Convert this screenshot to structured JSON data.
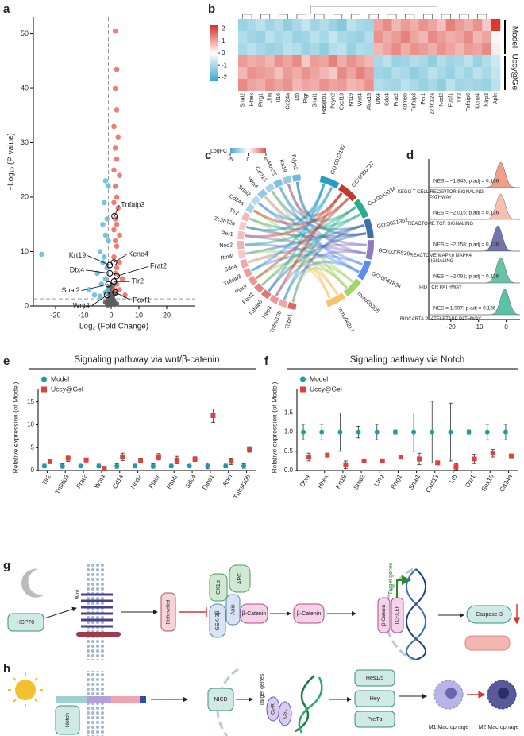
{
  "panel_labels": [
    "a",
    "b",
    "c",
    "d",
    "e",
    "f",
    "g",
    "h"
  ],
  "chart_data": [
    {
      "type": "volcano",
      "xlabel": "Log₂ (Fold Change)",
      "ylabel": "−Log₁₀ (P value)",
      "xlim": [
        -28,
        30
      ],
      "ylim": [
        0,
        53
      ],
      "xticks": [
        -20,
        -10,
        0,
        10,
        20
      ],
      "yticks": [
        0,
        10,
        20,
        30,
        40,
        50
      ],
      "vlines": [
        -1,
        1
      ],
      "hline": 1.3,
      "series": [
        {
          "color": "#5a5a5a",
          "x": [
            -1.5,
            -1,
            -0.5,
            0,
            0.5,
            1,
            1.5,
            -0.8,
            0.3,
            0.8,
            -0.3,
            2,
            -2,
            0.1,
            -0.6,
            0.6,
            0,
            -1.2,
            1.2,
            0.4
          ],
          "values": [
            0.5,
            1.2,
            2,
            0.3,
            1.6,
            0.8,
            2.4,
            2.8,
            3,
            1.1,
            0.6,
            0.4,
            0.7,
            2.2,
            3.4,
            3.8,
            1.4,
            0.2,
            0.3,
            0.9
          ]
        },
        {
          "color": "#e8685a",
          "x": [
            1.5,
            2,
            1.5,
            2,
            1,
            2.5,
            1.5,
            2,
            1,
            3,
            1.5,
            2,
            1,
            2.5,
            1.5,
            2,
            1,
            3,
            1.5,
            2,
            1,
            3,
            2,
            1.5,
            4,
            2,
            3,
            5,
            1.2
          ],
          "values": [
            50.5,
            43.5,
            40,
            36,
            33,
            31,
            29,
            27,
            25,
            24,
            22,
            20,
            19,
            18,
            16,
            15,
            14,
            13,
            12,
            11,
            9,
            8,
            7,
            6,
            5,
            4,
            3,
            2,
            3
          ]
        },
        {
          "color": "#62b8dd",
          "x": [
            -2,
            -1,
            -2.5,
            -1.5,
            -3,
            -2,
            -1,
            -4,
            -2.5,
            -25,
            -3,
            -1.5,
            -5,
            -2,
            -3.5,
            -8,
            -1.2,
            -2,
            -6,
            -4
          ],
          "values": [
            23,
            22,
            19,
            16,
            15,
            13,
            12,
            10,
            9,
            9.5,
            8,
            7,
            6,
            5,
            4,
            3,
            3,
            2.5,
            2,
            1.8
          ]
        }
      ],
      "annotations": [
        {
          "text": "Tnfaip3",
          "x": 1.2,
          "y": 16.5
        },
        {
          "text": "Krt19",
          "x": -0.5,
          "y": 7.5
        },
        {
          "text": "Kcne4",
          "x": 1,
          "y": 8
        },
        {
          "text": "Frat2",
          "x": 2,
          "y": 5.5
        },
        {
          "text": "Dtx4",
          "x": -0.5,
          "y": 6
        },
        {
          "text": "Tlr2",
          "x": 1,
          "y": 4.5
        },
        {
          "text": "Snai2",
          "x": -1,
          "y": 4
        },
        {
          "text": "Wnt4",
          "x": -1.5,
          "y": 2
        },
        {
          "text": "Foxf1",
          "x": 1.5,
          "y": 2.5
        }
      ]
    },
    {
      "type": "heatmap",
      "columns": [
        "Snai2",
        "Hhex",
        "Prrg1",
        "Lfng",
        "Il16",
        "Cd24a",
        "Ltb",
        "Pigr",
        "Snai1",
        "Rasgrp1",
        "Pdyn2",
        "Cxcl13",
        "Krt19",
        "Wnt4",
        "Alox15",
        "Dtx4",
        "Sdc4",
        "Frat2",
        "Kdm6b",
        "Tnfaip3",
        "Per1",
        "Zc3h12a",
        "Nod2",
        "Foxf1",
        "Tlr2",
        "Tnfaip6",
        "Kcne4",
        "Nlrp3",
        "Apln"
      ],
      "colorbar": {
        "lim": [
          -2.3,
          2.3
        ],
        "ticks": [
          -2,
          -1,
          0,
          1,
          2
        ],
        "colors": [
          "#3aa8c9",
          "#ffffff",
          "#d73027"
        ]
      },
      "groups": [
        {
          "name": "Model",
          "values": [
            [
              -1.2,
              -1.0,
              -0.8,
              -1.1,
              -0.9,
              -1.3,
              -1.0,
              -0.7,
              -1.1,
              -0.9,
              -1.2,
              -1.4,
              -0.8,
              -1.0,
              -1.1,
              1.0,
              1.3,
              0.8,
              1.1,
              0.9,
              1.2,
              1.0,
              0.7,
              1.4,
              1.1,
              0.9,
              1.2,
              0.6,
              2.2
            ],
            [
              -0.9,
              -1.1,
              -1.2,
              -0.8,
              -1.0,
              -0.9,
              -1.2,
              -1.1,
              -0.8,
              -1.0,
              -0.7,
              -1.0,
              -1.1,
              -1.2,
              -0.9,
              1.2,
              0.9,
              1.1,
              1.4,
              1.0,
              0.8,
              1.3,
              1.1,
              0.9,
              1.0,
              1.3,
              0.8,
              1.0,
              0.1
            ],
            [
              -1.0,
              -0.8,
              -1.0,
              -1.2,
              -1.1,
              -0.8,
              -0.9,
              -1.2,
              -1.0,
              -1.3,
              -0.9,
              -0.8,
              -1.2,
              -0.9,
              -1.0,
              0.8,
              1.0,
              1.3,
              0.9,
              1.2,
              1.1,
              0.9,
              1.2,
              1.0,
              0.8,
              1.1,
              1.0,
              1.3,
              0.2
            ]
          ]
        },
        {
          "name": "Uccy@Gel",
          "values": [
            [
              1.1,
              0.9,
              1.0,
              0.8,
              1.2,
              1.0,
              1.3,
              0.6,
              1.1,
              1.0,
              1.4,
              0.9,
              1.2,
              1.0,
              0.8,
              -1.0,
              -0.8,
              -1.2,
              -1.1,
              -0.9,
              -1.0,
              -1.3,
              -0.9,
              -1.1,
              -1.0,
              -0.8,
              -1.2,
              -0.9,
              -0.6
            ],
            [
              0.8,
              1.2,
              1.1,
              1.0,
              0.7,
              1.1,
              0.9,
              1.2,
              1.0,
              0.8,
              0.6,
              1.3,
              1.0,
              1.4,
              1.1,
              -1.1,
              -1.2,
              -0.9,
              -1.0,
              -1.3,
              -1.1,
              -0.8,
              -1.0,
              -1.2,
              -0.9,
              -1.1,
              -0.8,
              -1.0,
              -0.7
            ],
            [
              1.3,
              1.0,
              0.9,
              1.2,
              1.0,
              1.2,
              0.8,
              1.0,
              0.9,
              1.2,
              1.0,
              1.1,
              0.8,
              0.9,
              1.2,
              -0.9,
              -1.0,
              -1.1,
              -0.8,
              -1.0,
              -1.2,
              -1.0,
              -1.3,
              -0.8,
              -1.1,
              -1.0,
              -1.1,
              -1.2,
              -0.8
            ]
          ]
        }
      ]
    },
    {
      "type": "chord",
      "colorbar": {
        "label": "LogFC",
        "lim": [
          -5,
          5
        ],
        "ticks": [
          -5,
          0,
          5
        ],
        "colors": [
          "#49a6d6",
          "#ffffff",
          "#d9534f"
        ]
      },
      "genes": [
        "Pdyn2",
        "Krt19",
        "Alox15",
        "Cxcl13",
        "Wnt4",
        "Snai2",
        "Cd24a",
        "Tlr2",
        "Zc3h12a",
        "Per1",
        "Nod2",
        "Rtn4r",
        "Sdc4",
        "Tnfaip3",
        "Plaur",
        "Foxf1",
        "Tnfaip6",
        "Nlrp3",
        "Tnfrsf10b",
        "Thbs1"
      ],
      "logfc": [
        -4,
        -3,
        -3.5,
        -2.5,
        -3,
        -2,
        -2.5,
        2,
        1.5,
        1.8,
        2.2,
        1.5,
        2.5,
        2.8,
        3,
        3.5,
        4,
        3,
        2.5,
        4.5
      ],
      "terms": [
        "GO:0032102",
        "GO:0050727",
        "GO:0043034",
        "GO:0031362",
        "GO:0005539",
        "GO:0042834",
        "mmu05205",
        "mmu04217"
      ]
    },
    {
      "type": "ridge",
      "pathways": [
        "KEGG T CELL RECEPTOR SIGNALING PATHWAY",
        "REACTOME TCR SIGNALING",
        "REACTOME MAPK6 MAPK4 SIGNALING",
        "PID TCR PATHWAY",
        "BIOCARTA PLATELETAPP PATHWAY"
      ],
      "labels": [
        "NES = −1.843; p.adj = 0.136",
        "NES = −2.015; p.adj = 0.136",
        "NES = −2.158; p.adj = 0.136",
        "NES = −2.081; p.adj = 0.136",
        "NES = 1.907; p.adj = 0.136"
      ],
      "peaks": [
        -2,
        -2,
        -3,
        -2,
        -0.5
      ],
      "colors": [
        "#f08c76",
        "#f4b4a2",
        "#5a5c9e",
        "#4fb89a",
        "#3fb59a"
      ],
      "xlim": [
        -28,
        5
      ],
      "xticks": [
        -20,
        -10,
        0
      ]
    },
    {
      "type": "dot",
      "title": "Signaling pathway via wnt/β-catenin",
      "ylabel": "Relative expression (of Model)",
      "categories": [
        "Tlr2",
        "Tnfaip3",
        "Frat2",
        "Wnt4",
        "Cd14",
        "Nod2",
        "Plaur",
        "Rtn4r",
        "Sdc4",
        "Thbs1",
        "Apln",
        "Tnfrsf10b"
      ],
      "series": [
        {
          "name": "Model",
          "color": "#1f9aa8",
          "marker": "circle",
          "values": [
            1,
            1,
            1,
            1,
            1,
            1,
            1,
            1,
            1,
            1,
            1,
            1
          ],
          "errors": [
            0.4,
            0.5,
            0.3,
            0.4,
            0.5,
            0.4,
            0.5,
            0.4,
            0.3,
            0.6,
            0.4,
            0.5
          ]
        },
        {
          "name": "Uccy@Gel",
          "color": "#e0413a",
          "marker": "square",
          "values": [
            2,
            2.7,
            2.3,
            0.5,
            3,
            2.2,
            3,
            2.3,
            2.5,
            12,
            2,
            4.6
          ],
          "errors": [
            0.5,
            0.7,
            0.4,
            0.2,
            0.8,
            0.5,
            0.7,
            0.8,
            0.5,
            1.5,
            0.7,
            0.6
          ]
        }
      ],
      "ylim": [
        0,
        16
      ],
      "yticks": [
        0,
        5,
        10,
        15
      ]
    },
    {
      "type": "dot",
      "title": "Signaling pathway via Notch",
      "ylabel": "Relative expression (of Model)",
      "categories": [
        "Dtx4",
        "Hhex",
        "Krt19",
        "Snai2",
        "Lfng",
        "Prrg1",
        "Snai1",
        "Cxcl13",
        "Ltb",
        "Osr1",
        "Sox18",
        "Cd24a"
      ],
      "series": [
        {
          "name": "Model",
          "color": "#1f9aa8",
          "marker": "circle",
          "values": [
            1,
            1,
            1,
            1,
            1,
            1,
            1,
            1,
            1,
            1,
            1,
            1
          ],
          "errors": [
            0.2,
            0.2,
            0.5,
            0.15,
            0.2,
            0.05,
            0.5,
            0.8,
            0.75,
            0.05,
            0.2,
            0.2
          ]
        },
        {
          "name": "Uccy@Gel",
          "color": "#e0413a",
          "marker": "square",
          "values": [
            0.35,
            0.4,
            0.15,
            0.25,
            0.25,
            0.35,
            0.3,
            0.2,
            0.1,
            0.3,
            0.45,
            0.38
          ],
          "errors": [
            0.1,
            0.05,
            0.1,
            0.05,
            0.05,
            0.05,
            0.15,
            0.05,
            0.08,
            0.12,
            0.1,
            0.03
          ]
        }
      ],
      "ylim": [
        0,
        1.9
      ],
      "yticks": [
        {
          "value": 0,
          "label": "0.0"
        },
        {
          "value": 0.5,
          "label": "0.5"
        },
        {
          "value": 1,
          "label": "1.0"
        },
        {
          "value": 1.5,
          "label": "1.5"
        }
      ]
    }
  ],
  "diagram_g": {
    "hsp70": "HSP70",
    "wnt": "Wnt",
    "dishevelled": "Dishevelled",
    "ck1a": "CK1α",
    "apc": "APC",
    "axin": "Axin",
    "gsk3b": "GSK-3β",
    "bcat_complex": "β-Catenin",
    "bcat_free": "β-Catenin",
    "target_genes": "Target genes",
    "bcat_nuclear": "β-Catenin",
    "tcf_lef": "TCF/LEF",
    "caspase": "Caspase-3"
  },
  "diagram_h": {
    "notch": "Notch",
    "nicd": "NICD",
    "target_genes": "Target genes",
    "cor": "Co-R",
    "csl": "CSL",
    "hes": "Hes1/5",
    "hey": "Hey",
    "pretalpha": "PreTα",
    "m1": "M1 Macrophage",
    "m2": "M2 Macrophage"
  }
}
